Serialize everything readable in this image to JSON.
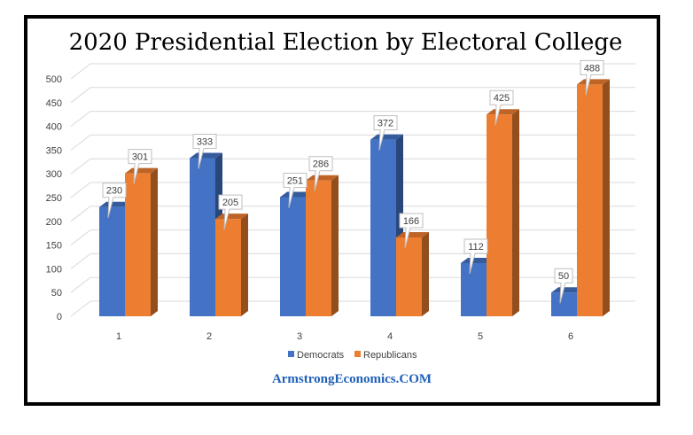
{
  "watermark": "ArmstrongEconomics.COM",
  "colors": {
    "democrats": "#4472c4",
    "republicans": "#ed7d31",
    "grid": "#d9d9d9",
    "watermark": "#1f5fb8"
  },
  "chart_data": {
    "type": "bar",
    "title": "2020 Presidential Election by Electoral College",
    "xlabel": "",
    "ylabel": "",
    "categories": [
      "1",
      "2",
      "3",
      "4",
      "5",
      "6"
    ],
    "series": [
      {
        "name": "Democrats",
        "values": [
          230,
          333,
          251,
          372,
          112,
          50
        ]
      },
      {
        "name": "Republicans",
        "values": [
          301,
          205,
          286,
          166,
          425,
          488
        ]
      }
    ],
    "ylim": [
      0,
      500
    ],
    "yticks": [
      "0",
      "50",
      "100",
      "150",
      "200",
      "250",
      "300",
      "350",
      "400",
      "450",
      "500"
    ],
    "grid": true,
    "legend": "bottom",
    "style": "3d-column"
  }
}
